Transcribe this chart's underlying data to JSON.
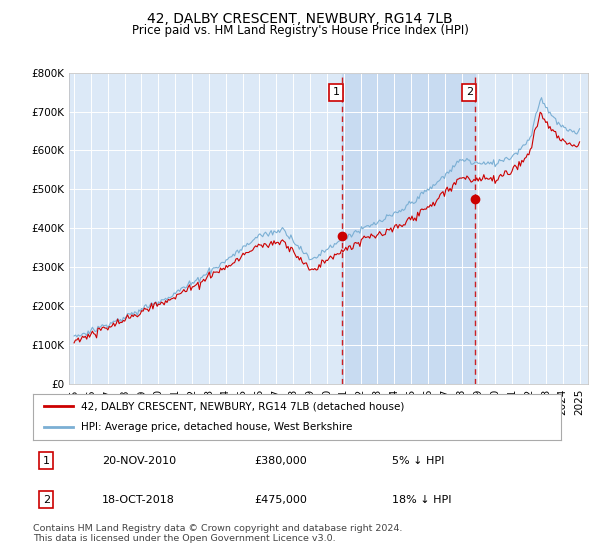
{
  "title": "42, DALBY CRESCENT, NEWBURY, RG14 7LB",
  "subtitle": "Price paid vs. HM Land Registry's House Price Index (HPI)",
  "background_color": "#ffffff",
  "plot_bg_color": "#dce9f7",
  "shade_color": "#b8d0ed",
  "ylim": [
    0,
    800000
  ],
  "yticks": [
    0,
    100000,
    200000,
    300000,
    400000,
    500000,
    600000,
    700000,
    800000
  ],
  "ytick_labels": [
    "£0",
    "£100K",
    "£200K",
    "£300K",
    "£400K",
    "£500K",
    "£600K",
    "£700K",
    "£800K"
  ],
  "hpi_color": "#7bafd4",
  "price_color": "#cc0000",
  "vline_color": "#cc0000",
  "annotation_box_color": "#cc0000",
  "xlim_left": 1994.7,
  "xlim_right": 2025.5,
  "purchase1_x": 2010.9,
  "purchase1_y": 380000,
  "purchase1_label": "1",
  "purchase2_x": 2018.8,
  "purchase2_y": 475000,
  "purchase2_label": "2",
  "legend_line1_label": "42, DALBY CRESCENT, NEWBURY, RG14 7LB (detached house)",
  "legend_line1_color": "#cc0000",
  "legend_line2_label": "HPI: Average price, detached house, West Berkshire",
  "legend_line2_color": "#7bafd4",
  "table_rows": [
    {
      "num": "1",
      "date": "20-NOV-2010",
      "price": "£380,000",
      "change": "5% ↓ HPI"
    },
    {
      "num": "2",
      "date": "18-OCT-2018",
      "price": "£475,000",
      "change": "18% ↓ HPI"
    }
  ],
  "footer": "Contains HM Land Registry data © Crown copyright and database right 2024.\nThis data is licensed under the Open Government Licence v3.0.",
  "title_fontsize": 10,
  "subtitle_fontsize": 8.5,
  "tick_fontsize": 7.5
}
